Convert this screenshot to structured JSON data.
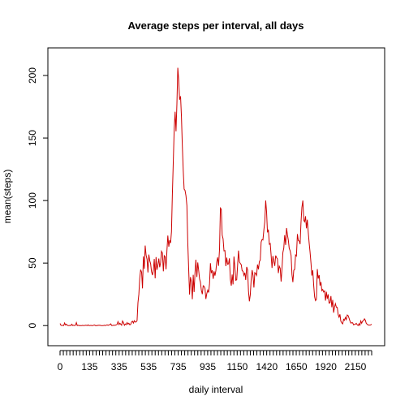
{
  "chart_data": {
    "type": "line",
    "title": "Average steps per interval, all days",
    "xlabel": "daily interval",
    "ylabel": "mean(steps)",
    "x_tick_labels": [
      "0",
      "135",
      "335",
      "535",
      "735",
      "935",
      "1150",
      "1420",
      "1650",
      "1920",
      "2150"
    ],
    "y_ticks": [
      0,
      50,
      100,
      150,
      200
    ],
    "ylim": [
      -7,
      213
    ],
    "series_color": "#cc0000",
    "series": [
      {
        "values": [
          1.7,
          0.3,
          0.1,
          0.2,
          0.0,
          2.1,
          0.5,
          1.1,
          0.3,
          0.0,
          0.0,
          0.2,
          0.0,
          1.1,
          0.0,
          0.3,
          0.0,
          0.3,
          2.4,
          0.0,
          0.3,
          0.0,
          0.1,
          0.0,
          0.0,
          0.2,
          0.0,
          0.1,
          0.3,
          0.2,
          0.0,
          0.5,
          0.1,
          0.0,
          0.2,
          0.0,
          0.0,
          0.3,
          0.5,
          0.0,
          0.1,
          0.0,
          0.3,
          0.2,
          0.3,
          0.1,
          0.0,
          0.0,
          0.1,
          0.3,
          0.0,
          0.3,
          0.6,
          0.2,
          0.6,
          0.7,
          1.4,
          0.1,
          0.1,
          0.3,
          0.2,
          0.3,
          0.6,
          0.9,
          3.1,
          0.8,
          1.9,
          1.1,
          0.3,
          3.7,
          2.4,
          0.2,
          1.3,
          0.7,
          2.4,
          1.1,
          1.9,
          0.6,
          1.1,
          2.9,
          3.5,
          2.0,
          3.9,
          2.8,
          2.9,
          4.0,
          18.3,
          25.0,
          37.8,
          44.7,
          42.8,
          29.8,
          55.3,
          45.4,
          64.0,
          56.4,
          53.0,
          42.5,
          56.8,
          52.0,
          49.5,
          43.2,
          40.4,
          44.6,
          53.3,
          37.8,
          54.8,
          44.6,
          48.4,
          53.6,
          46.7,
          50.2,
          59.4,
          58.0,
          43.4,
          55.9,
          55.0,
          45.0,
          60.0,
          72.0,
          63.0,
          68.2,
          66.0,
          75.0,
          105.0,
          130.0,
          158.0,
          171.0,
          155.4,
          177.3,
          206.2,
          196.4,
          180.6,
          183.4,
          167.0,
          143.5,
          124.0,
          109.1,
          108.1,
          103.7,
          95.97,
          66.2,
          45.2,
          24.8,
          38.8,
          34.9,
          21.1,
          40.6,
          26.9,
          42.4,
          52.7,
          38.9,
          50.5,
          44.3,
          37.4,
          34.7,
          28.3,
          25.1,
          31.9,
          31.4,
          29.7,
          21.3,
          25.5,
          28.3,
          26.5,
          33.4,
          49.9,
          42.0,
          44.2,
          37.4,
          43.4,
          40.0,
          43.8,
          50.8,
          54.5,
          47.8,
          60.8,
          94.0,
          93.0,
          72.3,
          69.4,
          59.8,
          60.0,
          47.5,
          54.4,
          49.0,
          49.3,
          53.8,
          36.8,
          31.9,
          40.8,
          33.0,
          55.2,
          47.0,
          36.2,
          36.7,
          48.3,
          60.0,
          51.0,
          49.7,
          48.7,
          43.8,
          43.5,
          40.2,
          42.3,
          36.5,
          46.9,
          44.6,
          27.6,
          19.4,
          24.5,
          36.6,
          44.4,
          40.0,
          30.4,
          42.3,
          41.6,
          40.2,
          48.8,
          45.0,
          51.2,
          52.3,
          66.8,
          68.8,
          68.5,
          76.8,
          83.0,
          100.0,
          91.0,
          74.5,
          76.8,
          65.1,
          65.6,
          56.2,
          46.1,
          55.7,
          51.6,
          47.7,
          56.0,
          54.3,
          53.3,
          42.0,
          47.6,
          45.8,
          35.2,
          45.6,
          58.5,
          61.9,
          72.3,
          64.5,
          78.0,
          72.5,
          68.3,
          61.7,
          59.9,
          56.1,
          40.7,
          34.7,
          44.2,
          45.0,
          56.5,
          55.6,
          73.2,
          68.1,
          67.6,
          65.1,
          82.3,
          94.4,
          100.0,
          84.2,
          83.0,
          87.5,
          77.8,
          84.7,
          74.3,
          65.8,
          58.6,
          50.2,
          40.0,
          44.3,
          31.8,
          23.0,
          20.0,
          21.0,
          45.2,
          37.6,
          40.4,
          32.0,
          34.8,
          27.9,
          28.9,
          26.9,
          27.7,
          19.9,
          27.0,
          21.4,
          25.0,
          18.0,
          18.3,
          23.6,
          14.7,
          20.6,
          10.3,
          14.8,
          17.5,
          14.6,
          14.6,
          8.8,
          6.7,
          9.0,
          3.5,
          2.1,
          1.4,
          5.0,
          4.2,
          6.5,
          4.8,
          8.5,
          8.0,
          6.0,
          3.8,
          2.0,
          2.2,
          2.2,
          0.6,
          1.0,
          1.1,
          1.8,
          0.7,
          0.0,
          1.5,
          0.3,
          3.7,
          1.8,
          3.6,
          4.0,
          5.4,
          4.3,
          1.8,
          1.1,
          0.5,
          0.4,
          0.4,
          0.6,
          1.1
        ]
      }
    ],
    "grid": false
  }
}
